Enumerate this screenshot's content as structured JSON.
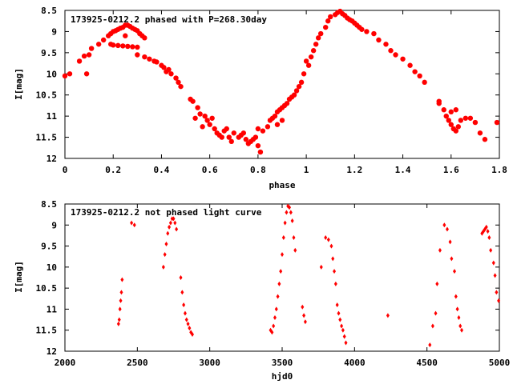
{
  "colors": {
    "points": "#ff0000",
    "axes": "#000000",
    "background": "#ffffff"
  },
  "chart_data": [
    {
      "type": "scatter",
      "title": "173925-0212.2 phased with P=268.30day",
      "xlabel": "phase",
      "ylabel": "I[mag]",
      "xlim": [
        0,
        1.8
      ],
      "ylim": [
        12,
        8.5
      ],
      "y_inverted": true,
      "grid": false,
      "x_ticks": [
        "0",
        "0.2",
        "0.4",
        "0.6",
        "0.8",
        "1",
        "1.2",
        "1.4",
        "1.6",
        "1.8"
      ],
      "y_ticks": [
        "8.5",
        "9",
        "9.5",
        "10",
        "10.5",
        "11",
        "11.5",
        "12"
      ],
      "marker": "filled-octagon",
      "points": [
        [
          0.0,
          10.05
        ],
        [
          0.02,
          10.0
        ],
        [
          0.06,
          9.7
        ],
        [
          0.08,
          9.58
        ],
        [
          0.1,
          9.55
        ],
        [
          0.09,
          10.0
        ],
        [
          0.11,
          9.4
        ],
        [
          0.14,
          9.3
        ],
        [
          0.16,
          9.2
        ],
        [
          0.18,
          9.1
        ],
        [
          0.19,
          9.05
        ],
        [
          0.2,
          9.0
        ],
        [
          0.21,
          8.98
        ],
        [
          0.22,
          8.95
        ],
        [
          0.23,
          8.92
        ],
        [
          0.24,
          8.9
        ],
        [
          0.25,
          8.85
        ],
        [
          0.26,
          8.85
        ],
        [
          0.27,
          8.88
        ],
        [
          0.28,
          8.92
        ],
        [
          0.29,
          8.95
        ],
        [
          0.3,
          8.98
        ],
        [
          0.31,
          9.05
        ],
        [
          0.32,
          9.1
        ],
        [
          0.33,
          9.15
        ],
        [
          0.19,
          9.3
        ],
        [
          0.2,
          9.32
        ],
        [
          0.22,
          9.33
        ],
        [
          0.24,
          9.34
        ],
        [
          0.26,
          9.35
        ],
        [
          0.28,
          9.36
        ],
        [
          0.3,
          9.37
        ],
        [
          0.25,
          9.1
        ],
        [
          0.3,
          9.55
        ],
        [
          0.33,
          9.6
        ],
        [
          0.35,
          9.65
        ],
        [
          0.37,
          9.7
        ],
        [
          0.38,
          9.72
        ],
        [
          0.4,
          9.8
        ],
        [
          0.41,
          9.85
        ],
        [
          0.43,
          9.9
        ],
        [
          0.44,
          10.0
        ],
        [
          0.42,
          9.95
        ],
        [
          0.46,
          10.1
        ],
        [
          0.47,
          10.2
        ],
        [
          0.48,
          10.3
        ],
        [
          0.52,
          10.6
        ],
        [
          0.53,
          10.65
        ],
        [
          0.55,
          10.8
        ],
        [
          0.56,
          10.95
        ],
        [
          0.58,
          11.0
        ],
        [
          0.59,
          11.1
        ],
        [
          0.6,
          11.2
        ],
        [
          0.54,
          11.05
        ],
        [
          0.57,
          11.25
        ],
        [
          0.61,
          11.05
        ],
        [
          0.62,
          11.3
        ],
        [
          0.63,
          11.4
        ],
        [
          0.64,
          11.45
        ],
        [
          0.65,
          11.5
        ],
        [
          0.66,
          11.35
        ],
        [
          0.67,
          11.3
        ],
        [
          0.68,
          11.5
        ],
        [
          0.69,
          11.6
        ],
        [
          0.7,
          11.4
        ],
        [
          0.72,
          11.5
        ],
        [
          0.73,
          11.45
        ],
        [
          0.74,
          11.4
        ],
        [
          0.75,
          11.55
        ],
        [
          0.76,
          11.65
        ],
        [
          0.77,
          11.6
        ],
        [
          0.78,
          11.55
        ],
        [
          0.79,
          11.5
        ],
        [
          0.8,
          11.7
        ],
        [
          0.81,
          11.85
        ],
        [
          0.8,
          11.3
        ],
        [
          0.82,
          11.35
        ],
        [
          0.84,
          11.25
        ],
        [
          0.85,
          11.1
        ],
        [
          0.86,
          11.05
        ],
        [
          0.87,
          11.0
        ],
        [
          0.88,
          10.9
        ],
        [
          0.89,
          10.85
        ],
        [
          0.9,
          10.8
        ],
        [
          0.91,
          10.75
        ],
        [
          0.88,
          11.2
        ],
        [
          0.9,
          11.1
        ],
        [
          0.92,
          10.7
        ],
        [
          0.93,
          10.6
        ],
        [
          0.94,
          10.55
        ],
        [
          0.95,
          10.5
        ],
        [
          0.96,
          10.4
        ],
        [
          0.97,
          10.3
        ],
        [
          0.98,
          10.2
        ],
        [
          0.99,
          10.0
        ],
        [
          1.0,
          9.7
        ],
        [
          1.01,
          9.8
        ],
        [
          1.02,
          9.6
        ],
        [
          1.03,
          9.45
        ],
        [
          1.04,
          9.3
        ],
        [
          1.05,
          9.15
        ],
        [
          1.06,
          9.05
        ],
        [
          1.08,
          8.9
        ],
        [
          1.09,
          8.75
        ],
        [
          1.1,
          8.65
        ],
        [
          1.12,
          8.6
        ],
        [
          1.13,
          8.55
        ],
        [
          1.14,
          8.52
        ],
        [
          1.15,
          8.58
        ],
        [
          1.16,
          8.62
        ],
        [
          1.17,
          8.68
        ],
        [
          1.18,
          8.72
        ],
        [
          1.19,
          8.75
        ],
        [
          1.2,
          8.8
        ],
        [
          1.21,
          8.85
        ],
        [
          1.22,
          8.9
        ],
        [
          1.23,
          8.95
        ],
        [
          1.25,
          9.0
        ],
        [
          1.28,
          9.05
        ],
        [
          1.3,
          9.2
        ],
        [
          1.33,
          9.3
        ],
        [
          1.35,
          9.45
        ],
        [
          1.37,
          9.55
        ],
        [
          1.4,
          9.65
        ],
        [
          1.43,
          9.8
        ],
        [
          1.45,
          9.95
        ],
        [
          1.47,
          10.05
        ],
        [
          1.49,
          10.2
        ],
        [
          1.55,
          10.7
        ],
        [
          1.57,
          10.85
        ],
        [
          1.58,
          11.0
        ],
        [
          1.59,
          11.1
        ],
        [
          1.6,
          11.2
        ],
        [
          1.61,
          11.3
        ],
        [
          1.62,
          11.35
        ],
        [
          1.63,
          11.25
        ],
        [
          1.64,
          11.1
        ],
        [
          1.66,
          11.05
        ],
        [
          1.68,
          11.05
        ],
        [
          1.7,
          11.15
        ],
        [
          1.72,
          11.4
        ],
        [
          1.74,
          11.55
        ],
        [
          1.79,
          11.15
        ],
        [
          1.62,
          10.85
        ],
        [
          1.55,
          10.65
        ],
        [
          1.6,
          10.9
        ]
      ]
    },
    {
      "type": "scatter",
      "title": "173925-0212.2 not phased light curve",
      "xlabel": "hjd0",
      "ylabel": "I[mag]",
      "xlim": [
        2000,
        5000
      ],
      "ylim": [
        12,
        8.5
      ],
      "y_inverted": true,
      "grid": false,
      "x_ticks": [
        "2000",
        "2500",
        "3000",
        "3500",
        "4000",
        "4500",
        "5000"
      ],
      "y_ticks": [
        "8.5",
        "9",
        "9.5",
        "10",
        "10.5",
        "11",
        "11.5",
        "12"
      ],
      "marker": "filled-diamond",
      "points": [
        [
          2370,
          11.35
        ],
        [
          2375,
          11.25
        ],
        [
          2380,
          11.0
        ],
        [
          2385,
          10.8
        ],
        [
          2390,
          10.6
        ],
        [
          2395,
          10.3
        ],
        [
          2460,
          8.95
        ],
        [
          2480,
          9.0
        ],
        [
          2680,
          10.0
        ],
        [
          2690,
          9.7
        ],
        [
          2700,
          9.45
        ],
        [
          2710,
          9.2
        ],
        [
          2720,
          9.05
        ],
        [
          2730,
          8.95
        ],
        [
          2740,
          8.85
        ],
        [
          2750,
          8.85
        ],
        [
          2760,
          8.95
        ],
        [
          2770,
          9.1
        ],
        [
          2800,
          10.25
        ],
        [
          2810,
          10.6
        ],
        [
          2820,
          10.9
        ],
        [
          2830,
          11.1
        ],
        [
          2840,
          11.25
        ],
        [
          2850,
          11.35
        ],
        [
          2860,
          11.45
        ],
        [
          2870,
          11.55
        ],
        [
          2880,
          11.6
        ],
        [
          3420,
          11.5
        ],
        [
          3430,
          11.55
        ],
        [
          3440,
          11.4
        ],
        [
          3450,
          11.2
        ],
        [
          3460,
          11.0
        ],
        [
          3470,
          10.7
        ],
        [
          3480,
          10.4
        ],
        [
          3490,
          10.1
        ],
        [
          3500,
          9.7
        ],
        [
          3510,
          9.3
        ],
        [
          3520,
          8.95
        ],
        [
          3530,
          8.7
        ],
        [
          3540,
          8.55
        ],
        [
          3550,
          8.58
        ],
        [
          3560,
          8.7
        ],
        [
          3570,
          8.9
        ],
        [
          3580,
          9.3
        ],
        [
          3590,
          9.6
        ],
        [
          3640,
          10.95
        ],
        [
          3650,
          11.15
        ],
        [
          3660,
          11.3
        ],
        [
          3770,
          10.0
        ],
        [
          3800,
          9.3
        ],
        [
          3820,
          9.35
        ],
        [
          3840,
          9.5
        ],
        [
          3850,
          9.8
        ],
        [
          3860,
          10.1
        ],
        [
          3870,
          10.4
        ],
        [
          3880,
          10.9
        ],
        [
          3890,
          11.1
        ],
        [
          3900,
          11.25
        ],
        [
          3910,
          11.4
        ],
        [
          3920,
          11.5
        ],
        [
          3930,
          11.65
        ],
        [
          3940,
          11.8
        ],
        [
          4230,
          11.15
        ],
        [
          4520,
          11.85
        ],
        [
          4540,
          11.4
        ],
        [
          4560,
          11.1
        ],
        [
          4570,
          10.4
        ],
        [
          4590,
          9.6
        ],
        [
          4620,
          9.0
        ],
        [
          4640,
          9.1
        ],
        [
          4660,
          9.4
        ],
        [
          4670,
          9.8
        ],
        [
          4690,
          10.1
        ],
        [
          4700,
          10.7
        ],
        [
          4710,
          11.0
        ],
        [
          4720,
          11.2
        ],
        [
          4730,
          11.4
        ],
        [
          4740,
          11.5
        ],
        [
          4880,
          9.2
        ],
        [
          4890,
          9.15
        ],
        [
          4900,
          9.1
        ],
        [
          4910,
          9.05
        ],
        [
          4920,
          9.15
        ],
        [
          4930,
          9.3
        ],
        [
          4940,
          9.6
        ],
        [
          4960,
          9.9
        ],
        [
          4970,
          10.2
        ],
        [
          4980,
          10.6
        ],
        [
          4995,
          10.8
        ]
      ]
    }
  ]
}
